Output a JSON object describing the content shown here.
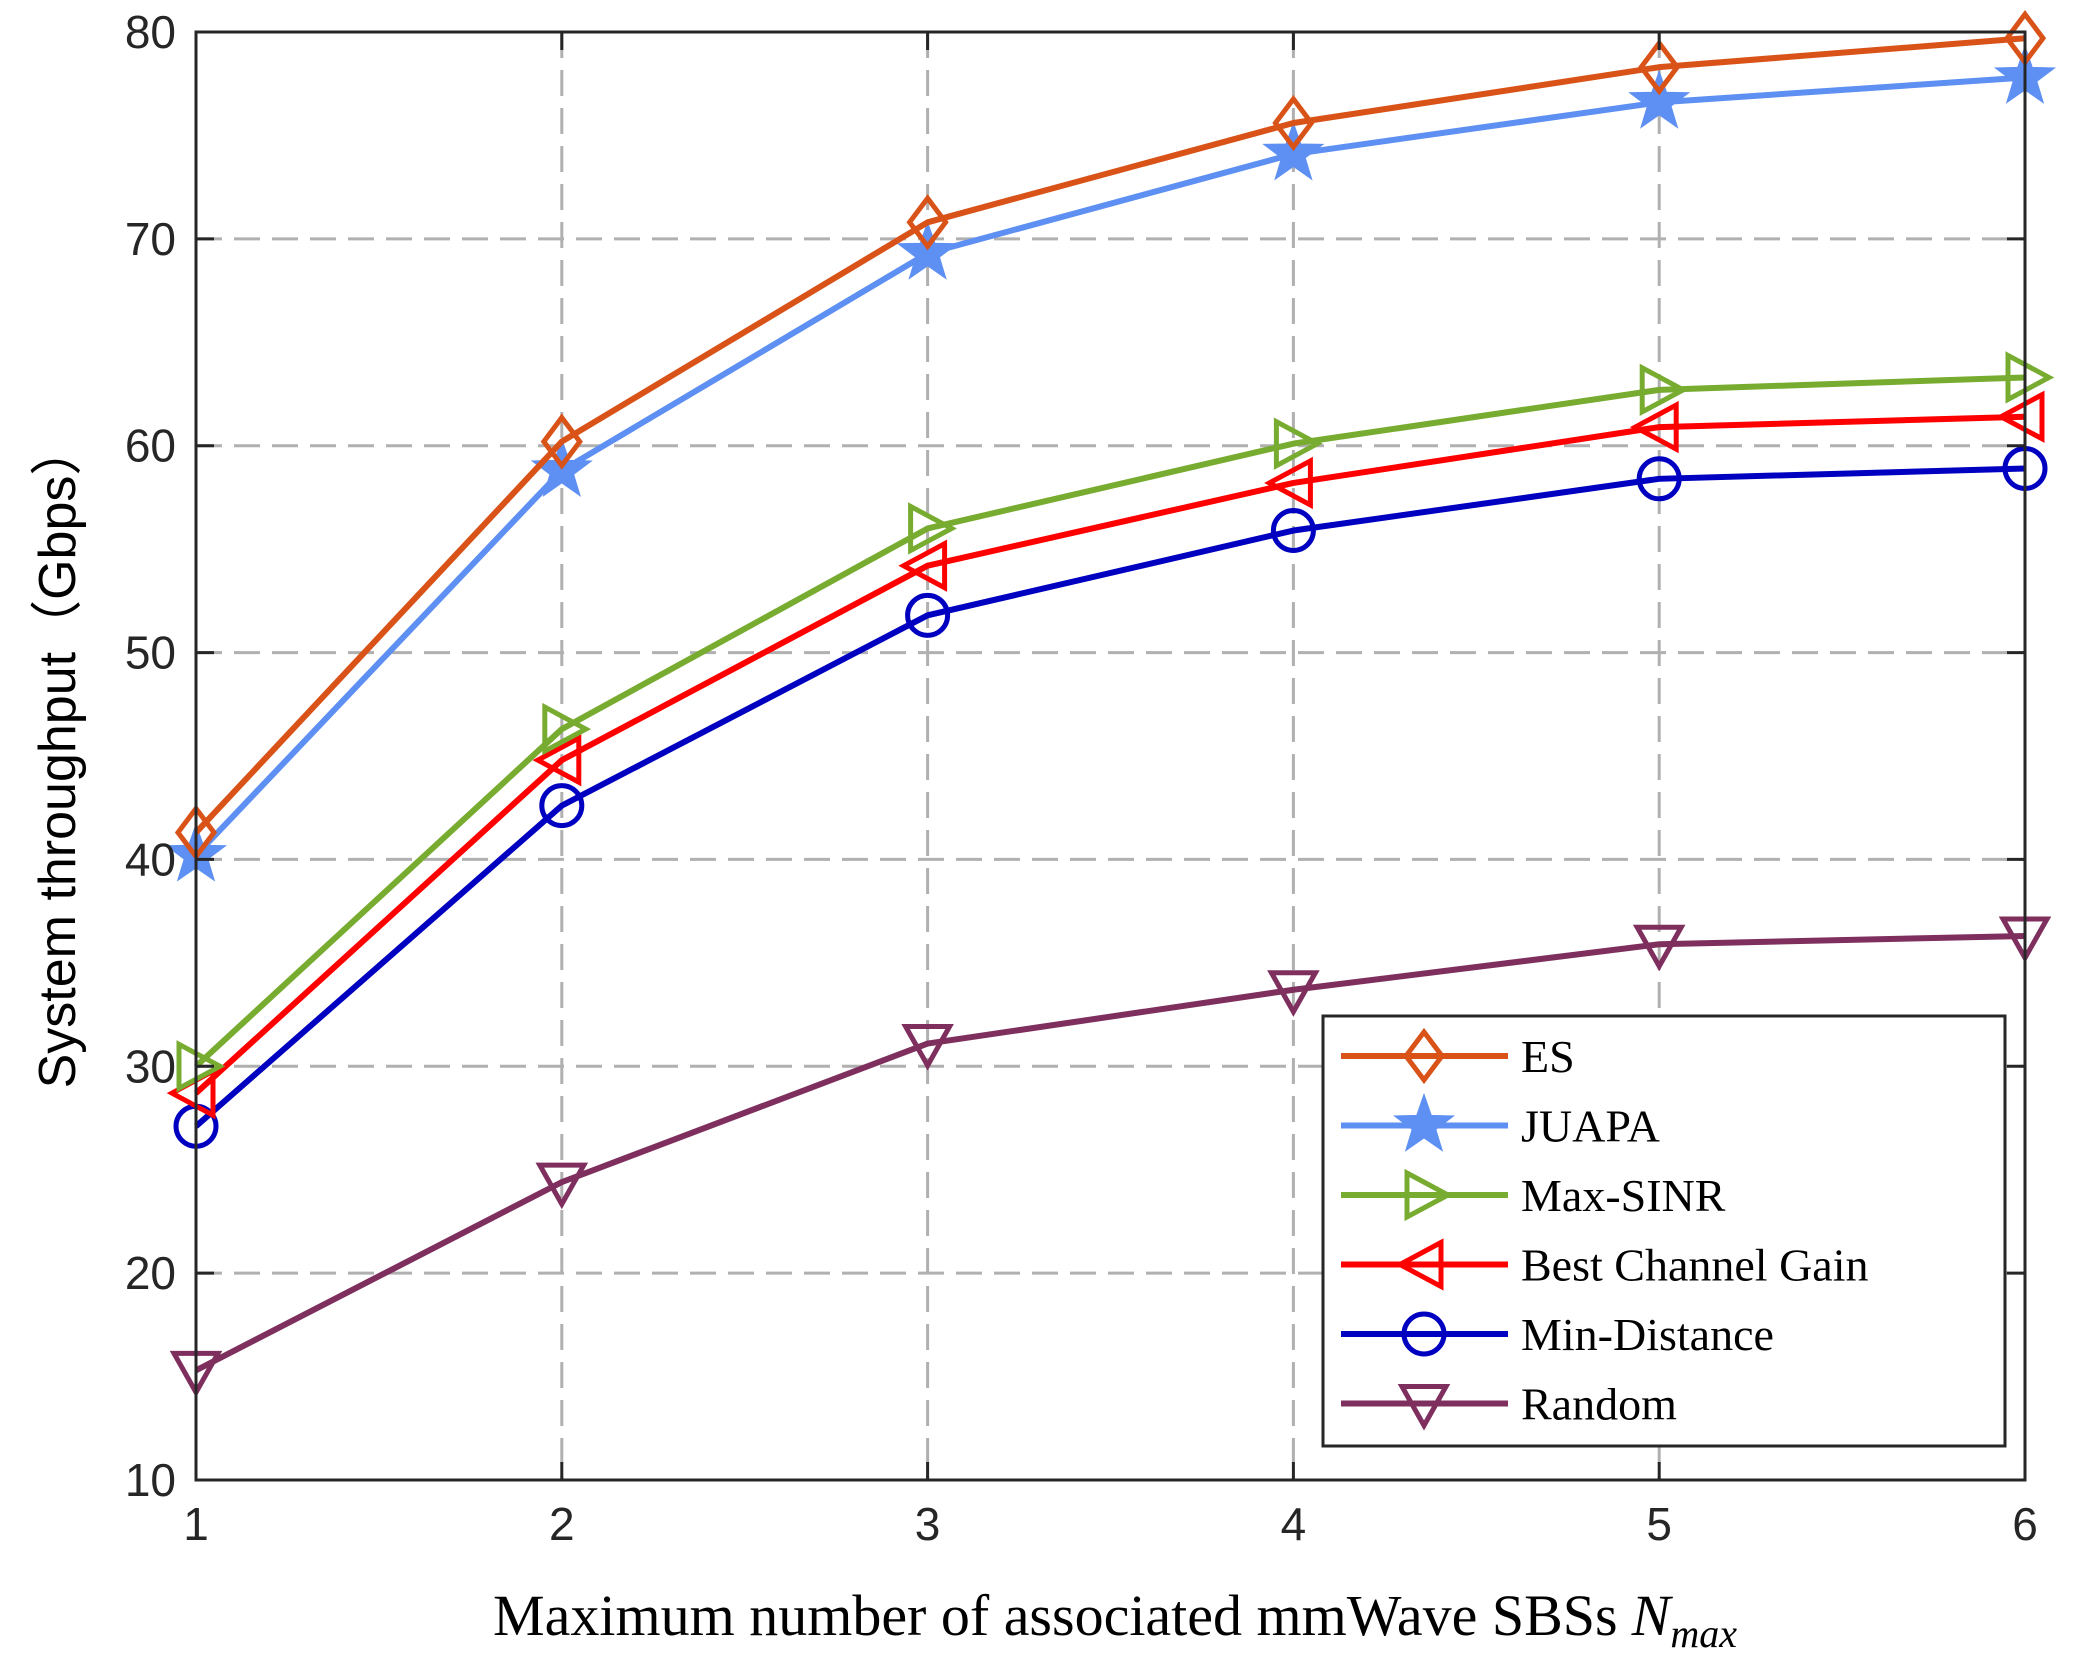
{
  "chart_data": {
    "type": "line",
    "title": "",
    "xlabel": "Maximum number of associated mmWave SBSs",
    "xlabel_symbol": "N",
    "xlabel_subscript": "max",
    "ylabel": "System throughput（Gbps）",
    "x": [
      1,
      2,
      3,
      4,
      5,
      6
    ],
    "xlim": [
      1,
      6
    ],
    "ylim": [
      10,
      80
    ],
    "xticks": [
      "1",
      "2",
      "3",
      "4",
      "5",
      "6"
    ],
    "yticks": [
      "10",
      "20",
      "30",
      "40",
      "50",
      "60",
      "70",
      "80"
    ],
    "grid": true,
    "legend_position": "bottom-right",
    "series": [
      {
        "name": "ES",
        "color": "#d95319",
        "marker": "diamond",
        "values": [
          41.3,
          60.2,
          70.8,
          75.6,
          78.3,
          79.7
        ]
      },
      {
        "name": "JUAPA",
        "color": "#5e8ff2",
        "marker": "star",
        "values": [
          40.2,
          58.8,
          69.3,
          74.1,
          76.6,
          77.8
        ]
      },
      {
        "name": "Max-SINR",
        "color": "#77ac30",
        "marker": "triangle-right",
        "values": [
          30.0,
          46.3,
          56.0,
          60.1,
          62.7,
          63.3
        ]
      },
      {
        "name": "Best Channel Gain",
        "color": "#ff0000",
        "marker": "triangle-left",
        "values": [
          28.7,
          44.8,
          54.2,
          58.2,
          60.9,
          61.4
        ]
      },
      {
        "name": "Min-Distance",
        "color": "#0000c0",
        "marker": "circle",
        "values": [
          27.1,
          42.6,
          51.8,
          55.9,
          58.4,
          58.9
        ]
      },
      {
        "name": "Random",
        "color": "#7e2f5e",
        "marker": "triangle-down",
        "values": [
          15.3,
          24.4,
          31.1,
          33.7,
          35.9,
          36.3
        ]
      }
    ]
  }
}
